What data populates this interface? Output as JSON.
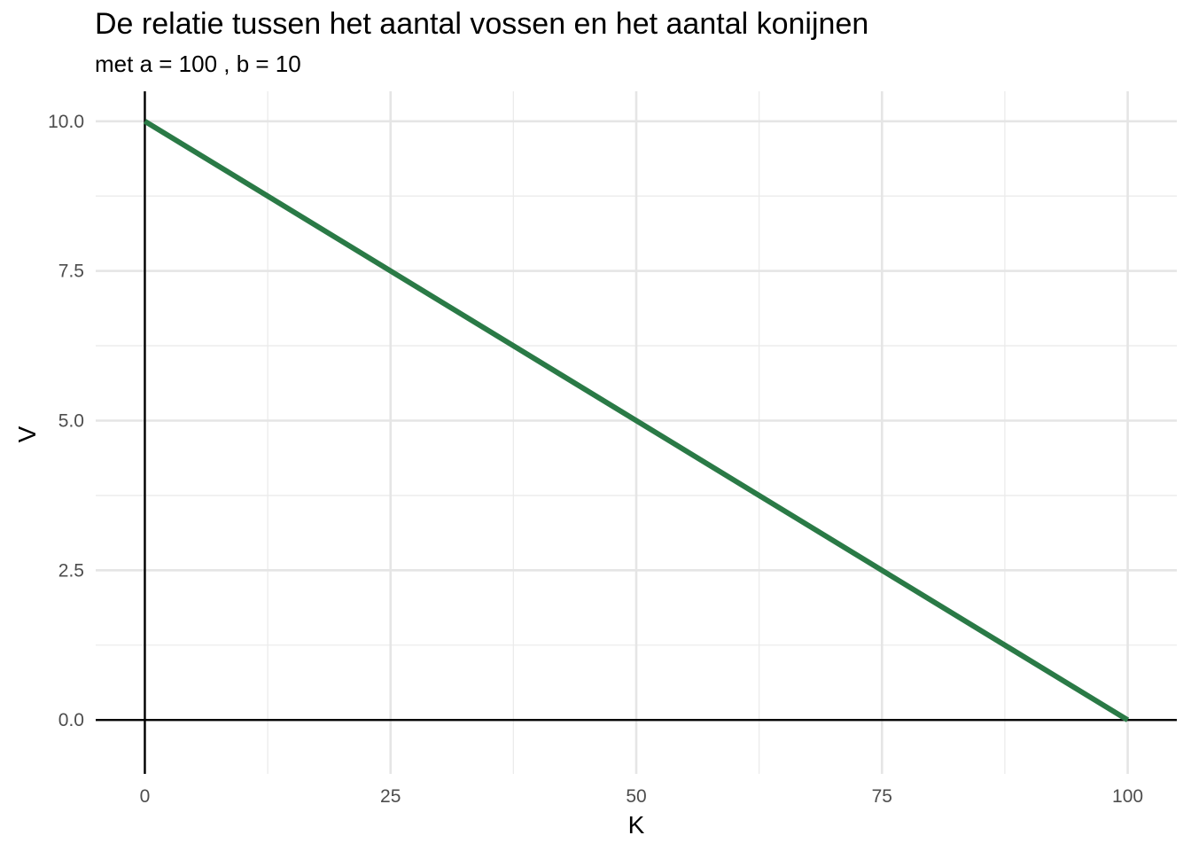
{
  "chart_data": {
    "type": "line",
    "title": "De relatie tussen het aantal vossen en het aantal konijnen",
    "subtitle": "met a = 100 , b = 10",
    "xlabel": "K",
    "ylabel": "V",
    "xlim": [
      -5,
      105
    ],
    "ylim": [
      -0.9,
      10.5
    ],
    "x_ticks": [
      0,
      25,
      50,
      75,
      100
    ],
    "x_tick_labels": [
      "0",
      "25",
      "50",
      "75",
      "100"
    ],
    "y_ticks": [
      0,
      2.5,
      5,
      7.5,
      10
    ],
    "y_tick_labels": [
      "0.0",
      "2.5",
      "5.0",
      "7.5",
      "10.0"
    ],
    "grid": true,
    "reference_lines": {
      "x": 0,
      "y": 0
    },
    "series": [
      {
        "color": "#2a7a46",
        "x": [
          0,
          100
        ],
        "y": [
          10,
          0
        ]
      }
    ]
  }
}
